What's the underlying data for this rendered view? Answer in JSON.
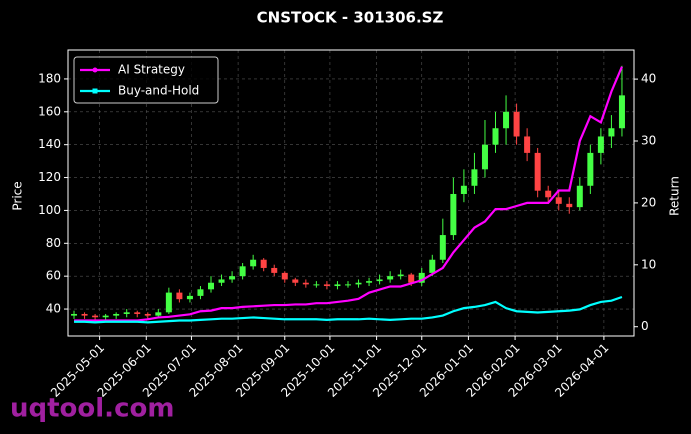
{
  "chart_data": {
    "type": "candlestick",
    "title": "CNSTOCK - 301306.SZ",
    "ylabel": "Price",
    "y2label": "Return",
    "x": [
      "2025-04-14",
      "2025-04-21",
      "2025-04-28",
      "2025-05-05",
      "2025-05-12",
      "2025-05-19",
      "2025-05-26",
      "2025-06-02",
      "2025-06-09",
      "2025-06-16",
      "2025-06-23",
      "2025-06-30",
      "2025-07-07",
      "2025-07-14",
      "2025-07-21",
      "2025-07-28",
      "2025-08-04",
      "2025-08-11",
      "2025-08-18",
      "2025-08-25",
      "2025-09-01",
      "2025-09-08",
      "2025-09-15",
      "2025-09-22",
      "2025-09-29",
      "2025-10-06",
      "2025-10-13",
      "2025-10-20",
      "2025-10-27",
      "2025-11-03",
      "2025-11-10",
      "2025-11-17",
      "2025-11-24",
      "2025-12-01",
      "2025-12-08",
      "2025-12-15",
      "2025-12-22",
      "2025-12-29",
      "2026-01-05",
      "2026-01-12",
      "2026-01-19",
      "2026-01-26",
      "2026-02-02",
      "2026-02-09",
      "2026-02-16",
      "2026-02-23",
      "2026-03-02",
      "2026-03-09",
      "2026-03-16",
      "2026-03-23",
      "2026-03-30",
      "2026-04-06",
      "2026-04-13"
    ],
    "open": [
      36,
      37,
      36,
      35,
      36,
      37,
      38,
      37,
      36,
      38,
      50,
      46,
      48,
      52,
      56,
      58,
      60,
      66,
      70,
      65,
      62,
      58,
      56,
      55,
      55,
      54,
      55,
      55,
      56,
      57,
      58,
      60,
      61,
      56,
      62,
      70,
      85,
      110,
      115,
      125,
      140,
      150,
      160,
      145,
      135,
      112,
      108,
      104,
      102,
      115,
      135,
      145,
      150
    ],
    "high": [
      39,
      38,
      37,
      37,
      38,
      40,
      39,
      38,
      40,
      53,
      52,
      50,
      54,
      60,
      61,
      63,
      68,
      73,
      71,
      67,
      63,
      59,
      58,
      57,
      57,
      57,
      57,
      58,
      59,
      61,
      63,
      64,
      62,
      65,
      73,
      95,
      120,
      125,
      135,
      155,
      160,
      170,
      165,
      150,
      138,
      115,
      112,
      108,
      120,
      140,
      150,
      158,
      188
    ],
    "low": [
      34,
      34,
      33,
      33,
      34,
      35,
      35,
      34,
      35,
      37,
      44,
      44,
      46,
      50,
      54,
      56,
      58,
      64,
      63,
      60,
      56,
      54,
      53,
      53,
      52,
      52,
      53,
      53,
      54,
      55,
      56,
      58,
      54,
      54,
      60,
      68,
      82,
      105,
      110,
      120,
      135,
      140,
      140,
      130,
      108,
      104,
      100,
      98,
      100,
      110,
      128,
      138,
      145
    ],
    "close": [
      37,
      36,
      35,
      36,
      37,
      38,
      37,
      36,
      38,
      50,
      46,
      48,
      52,
      56,
      58,
      60,
      66,
      70,
      65,
      62,
      58,
      56,
      55,
      55,
      54,
      55,
      55,
      56,
      57,
      58,
      60,
      61,
      56,
      62,
      70,
      85,
      110,
      115,
      125,
      140,
      150,
      160,
      145,
      135,
      112,
      108,
      104,
      102,
      115,
      135,
      145,
      150,
      170
    ],
    "up_color": "#44ff44",
    "down_color": "#ff4444",
    "series": [
      {
        "name": "AI Strategy",
        "color": "#ff00ff",
        "axis": "y2",
        "marker": "circle",
        "values": [
          1,
          1,
          1,
          1,
          1,
          1,
          1,
          1.2,
          1.5,
          1.6,
          1.8,
          2,
          2.5,
          2.6,
          3,
          3,
          3.2,
          3.3,
          3.4,
          3.5,
          3.5,
          3.6,
          3.6,
          3.8,
          3.8,
          4,
          4.2,
          4.5,
          5.5,
          6,
          6.5,
          6.5,
          7,
          7.5,
          8.5,
          9.5,
          12,
          14,
          16,
          17,
          19,
          19,
          19.5,
          20,
          20,
          20,
          22,
          22,
          30,
          34,
          33,
          38,
          42
        ]
      },
      {
        "name": "Buy-and-Hold",
        "color": "#00ffff",
        "axis": "y2",
        "marker": "square",
        "values": [
          0.8,
          0.8,
          0.7,
          0.8,
          0.8,
          0.8,
          0.8,
          0.7,
          0.8,
          0.9,
          1,
          1,
          1.1,
          1.2,
          1.3,
          1.3,
          1.4,
          1.5,
          1.4,
          1.3,
          1.2,
          1.2,
          1.2,
          1.2,
          1.1,
          1.2,
          1.2,
          1.2,
          1.3,
          1.2,
          1.1,
          1.2,
          1.3,
          1.3,
          1.5,
          1.8,
          2.5,
          3,
          3.2,
          3.5,
          4,
          3,
          2.5,
          2.4,
          2.3,
          2.4,
          2.5,
          2.6,
          2.8,
          3.5,
          4,
          4.2,
          4.8
        ]
      }
    ],
    "xlim": [
      "2025-04-10",
      "2026-04-21"
    ],
    "xticks": [
      "2025-05-01",
      "2025-06-01",
      "2025-07-01",
      "2025-08-01",
      "2025-09-01",
      "2025-10-01",
      "2025-11-01",
      "2025-12-01",
      "2026-01-01",
      "2026-02-01",
      "2026-03-01",
      "2026-04-01"
    ],
    "ylim": [
      23.6,
      197.6
    ],
    "yticks": [
      40,
      60,
      80,
      100,
      120,
      140,
      160,
      180
    ],
    "y2lim": [
      -1.5,
      44.7
    ],
    "y2ticks": [
      0,
      10,
      20,
      30,
      40
    ],
    "grid": true,
    "legend": "upper left"
  },
  "watermark": "uqtool.com"
}
